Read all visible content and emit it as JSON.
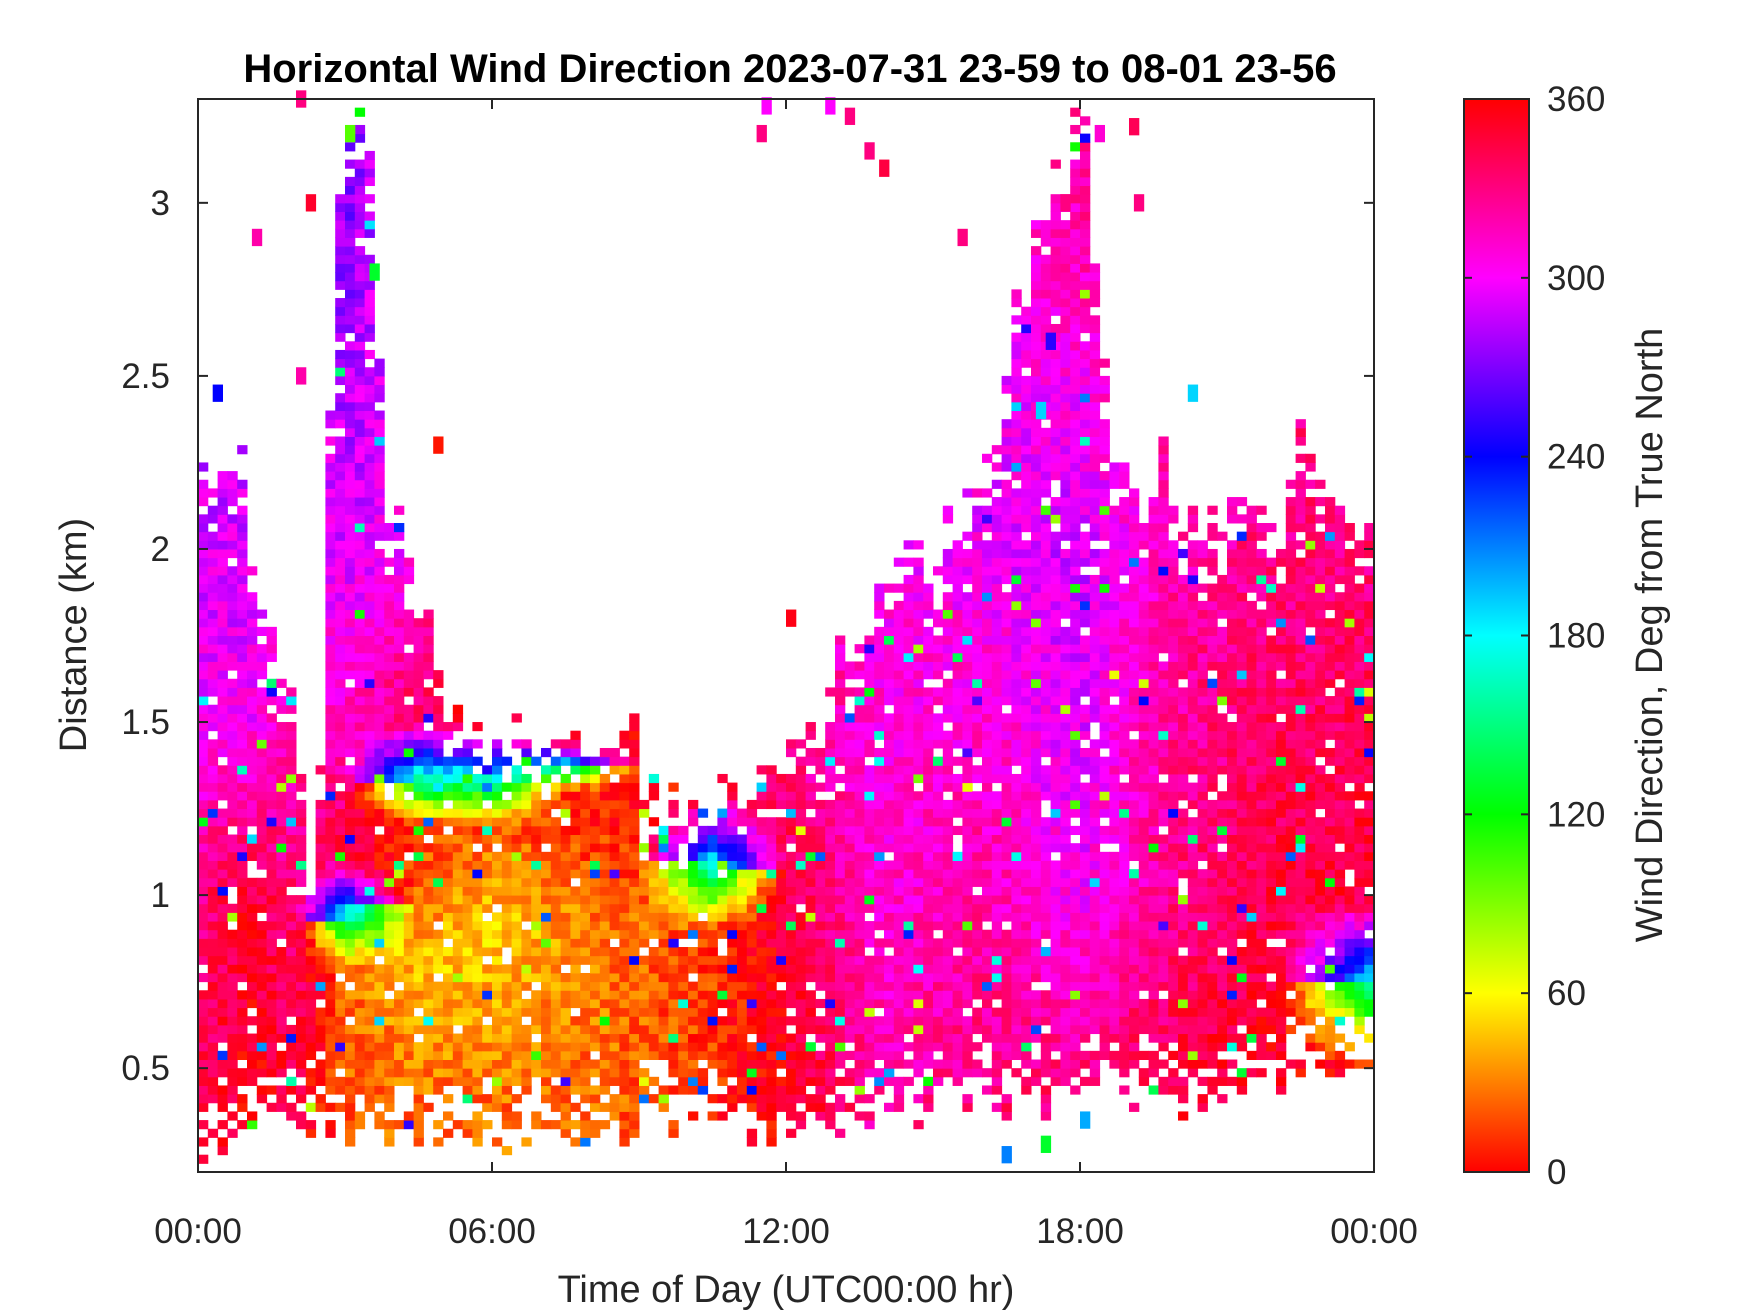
{
  "chart_data": {
    "type": "heatmap",
    "title": "Horizontal Wind Direction 2023-07-31 23-59 to 08-01 23-56",
    "xlabel": "Time of Day (UTC00:00 hr)",
    "ylabel": "Distance (km)",
    "x_unit": "hour",
    "xlim": [
      0,
      24
    ],
    "ylim": [
      0.2,
      3.3
    ],
    "x_ticks": [
      0,
      6,
      12,
      18,
      24
    ],
    "x_tick_labels": [
      "00:00",
      "06:00",
      "12:00",
      "18:00",
      "00:00"
    ],
    "y_ticks": [
      0.5,
      1,
      1.5,
      2,
      2.5,
      3
    ],
    "y_tick_labels": [
      "0.5",
      "1",
      "1.5",
      "2",
      "2.5",
      "3"
    ],
    "colorbar": {
      "label": "Wind Direction, Deg from True North",
      "range": [
        0,
        360
      ],
      "ticks": [
        0,
        60,
        120,
        180,
        240,
        300,
        360
      ],
      "tick_labels": [
        "0",
        "60",
        "120",
        "180",
        "240",
        "300",
        "360"
      ],
      "colormap": "hsv",
      "colors": [
        "#ff0000",
        "#ffff00",
        "#00ff00",
        "#00ffff",
        "#0000ff",
        "#ff00ff",
        "#ff0000"
      ]
    },
    "column_hours": 0.2,
    "row_km": 0.025,
    "data_top_km": [
      [
        0,
        2.2
      ],
      [
        0.5,
        2.3
      ],
      [
        1,
        2.15
      ],
      [
        1.5,
        1.8
      ],
      [
        2,
        1.5
      ],
      [
        2.4,
        1.0
      ],
      [
        2.6,
        2.0
      ],
      [
        3,
        3.2
      ],
      [
        3.6,
        3.3
      ],
      [
        3.8,
        2.0
      ],
      [
        4.2,
        2.1
      ],
      [
        5,
        1.6
      ],
      [
        5.5,
        1.6
      ],
      [
        6,
        1.5
      ],
      [
        7,
        1.45
      ],
      [
        8,
        1.45
      ],
      [
        9,
        1.4
      ],
      [
        9.5,
        1.25
      ],
      [
        10,
        1.15
      ],
      [
        10.5,
        1.35
      ],
      [
        11,
        1.3
      ],
      [
        11.5,
        1.3
      ],
      [
        12,
        1.4
      ],
      [
        12.5,
        1.5
      ],
      [
        13,
        1.6
      ],
      [
        13.5,
        1.8
      ],
      [
        14,
        2.0
      ],
      [
        14.5,
        2.1
      ],
      [
        15,
        2.0
      ],
      [
        15.5,
        2.1
      ],
      [
        16,
        2.3
      ],
      [
        16.5,
        2.5
      ],
      [
        17,
        2.9
      ],
      [
        17.5,
        3.1
      ],
      [
        18,
        3.3
      ],
      [
        18.5,
        2.5
      ],
      [
        19,
        2.2
      ],
      [
        20,
        2.2
      ],
      [
        21,
        2.05
      ],
      [
        22,
        2.0
      ],
      [
        22.5,
        2.3
      ],
      [
        23,
        2.1
      ],
      [
        24,
        2.0
      ]
    ],
    "data_bottom_km": [
      [
        0,
        0.2
      ],
      [
        2,
        0.3
      ],
      [
        3,
        0.25
      ],
      [
        5,
        0.25
      ],
      [
        8,
        0.25
      ],
      [
        10,
        0.3
      ],
      [
        12,
        0.25
      ],
      [
        14,
        0.3
      ],
      [
        16,
        0.35
      ],
      [
        18,
        0.35
      ],
      [
        20,
        0.35
      ],
      [
        22,
        0.4
      ],
      [
        24,
        0.45
      ]
    ],
    "direction_deg_profiles": [
      {
        "x": 0,
        "profile": [
          [
            0.3,
            340
          ],
          [
            1.0,
            330
          ],
          [
            1.5,
            300
          ],
          [
            2.2,
            290
          ]
        ]
      },
      {
        "x": 1,
        "profile": [
          [
            0.5,
            355
          ],
          [
            1.0,
            350
          ],
          [
            1.5,
            300
          ],
          [
            2.1,
            290
          ]
        ]
      },
      {
        "x": 2,
        "profile": [
          [
            0.5,
            345
          ],
          [
            1.2,
            325
          ],
          [
            1.8,
            310
          ]
        ]
      },
      {
        "x": 3,
        "profile": [
          [
            0.4,
            20
          ],
          [
            0.8,
            25
          ],
          [
            1.1,
            345
          ],
          [
            1.6,
            310
          ],
          [
            2.0,
            290
          ],
          [
            3.0,
            270
          ]
        ]
      },
      {
        "x": 4.5,
        "profile": [
          [
            0.4,
            25
          ],
          [
            0.8,
            45
          ],
          [
            1.2,
            10
          ],
          [
            1.5,
            340
          ],
          [
            2.0,
            305
          ]
        ]
      },
      {
        "x": 6,
        "profile": [
          [
            0.4,
            25
          ],
          [
            0.9,
            50
          ],
          [
            1.2,
            20
          ],
          [
            1.5,
            355
          ]
        ]
      },
      {
        "x": 7.5,
        "profile": [
          [
            0.4,
            25
          ],
          [
            0.9,
            35
          ],
          [
            1.3,
            5
          ],
          [
            1.45,
            355
          ]
        ]
      },
      {
        "x": 9,
        "profile": [
          [
            0.4,
            20
          ],
          [
            0.9,
            25
          ],
          [
            1.3,
            0
          ]
        ]
      },
      {
        "x": 10.5,
        "profile": [
          [
            0.4,
            10
          ],
          [
            0.9,
            15
          ],
          [
            1.3,
            355
          ]
        ]
      },
      {
        "x": 12,
        "profile": [
          [
            0.4,
            355
          ],
          [
            1.0,
            345
          ],
          [
            1.4,
            330
          ]
        ]
      },
      {
        "x": 14,
        "profile": [
          [
            0.4,
            320
          ],
          [
            1.0,
            310
          ],
          [
            1.8,
            305
          ]
        ]
      },
      {
        "x": 16,
        "profile": [
          [
            0.4,
            330
          ],
          [
            1.0,
            320
          ],
          [
            2.0,
            300
          ]
        ]
      },
      {
        "x": 18,
        "profile": [
          [
            0.4,
            335
          ],
          [
            1.0,
            300
          ],
          [
            2.0,
            290
          ],
          [
            3.0,
            320
          ]
        ]
      },
      {
        "x": 20,
        "profile": [
          [
            0.4,
            345
          ],
          [
            1.0,
            330
          ],
          [
            2.0,
            320
          ]
        ]
      },
      {
        "x": 22,
        "profile": [
          [
            0.5,
            355
          ],
          [
            1.0,
            345
          ],
          [
            2.0,
            330
          ]
        ]
      },
      {
        "x": 24,
        "profile": [
          [
            0.5,
            0
          ],
          [
            1.0,
            350
          ],
          [
            2.0,
            330
          ]
        ]
      }
    ],
    "scattered_points": [
      {
        "x": 2.0,
        "y": 3.3,
        "deg": 330
      },
      {
        "x": 2.2,
        "y": 3.0,
        "deg": 350
      },
      {
        "x": 1.1,
        "y": 2.9,
        "deg": 320
      },
      {
        "x": 2.0,
        "y": 2.5,
        "deg": 320
      },
      {
        "x": 0.3,
        "y": 2.45,
        "deg": 240
      },
      {
        "x": 4.8,
        "y": 2.3,
        "deg": 5
      },
      {
        "x": 11.5,
        "y": 3.28,
        "deg": 300
      },
      {
        "x": 11.4,
        "y": 3.2,
        "deg": 330
      },
      {
        "x": 12.8,
        "y": 3.28,
        "deg": 300
      },
      {
        "x": 13.2,
        "y": 3.25,
        "deg": 330
      },
      {
        "x": 13.6,
        "y": 3.15,
        "deg": 330
      },
      {
        "x": 13.9,
        "y": 3.1,
        "deg": 345
      },
      {
        "x": 15.5,
        "y": 2.9,
        "deg": 330
      },
      {
        "x": 17.6,
        "y": 3.0,
        "deg": 330
      },
      {
        "x": 18.3,
        "y": 3.2,
        "deg": 310
      },
      {
        "x": 19.1,
        "y": 3.0,
        "deg": 330
      },
      {
        "x": 19.0,
        "y": 3.22,
        "deg": 340
      },
      {
        "x": 12.0,
        "y": 1.8,
        "deg": 355
      },
      {
        "x": 17.3,
        "y": 2.6,
        "deg": 250
      },
      {
        "x": 17.1,
        "y": 2.4,
        "deg": 190
      },
      {
        "x": 20.2,
        "y": 2.45,
        "deg": 190
      },
      {
        "x": 16.4,
        "y": 0.25,
        "deg": 210
      },
      {
        "x": 17.2,
        "y": 0.28,
        "deg": 130
      },
      {
        "x": 18.0,
        "y": 0.35,
        "deg": 200
      },
      {
        "x": 3.5,
        "y": 2.8,
        "deg": 130
      },
      {
        "x": 3.0,
        "y": 3.2,
        "deg": 100
      }
    ]
  }
}
